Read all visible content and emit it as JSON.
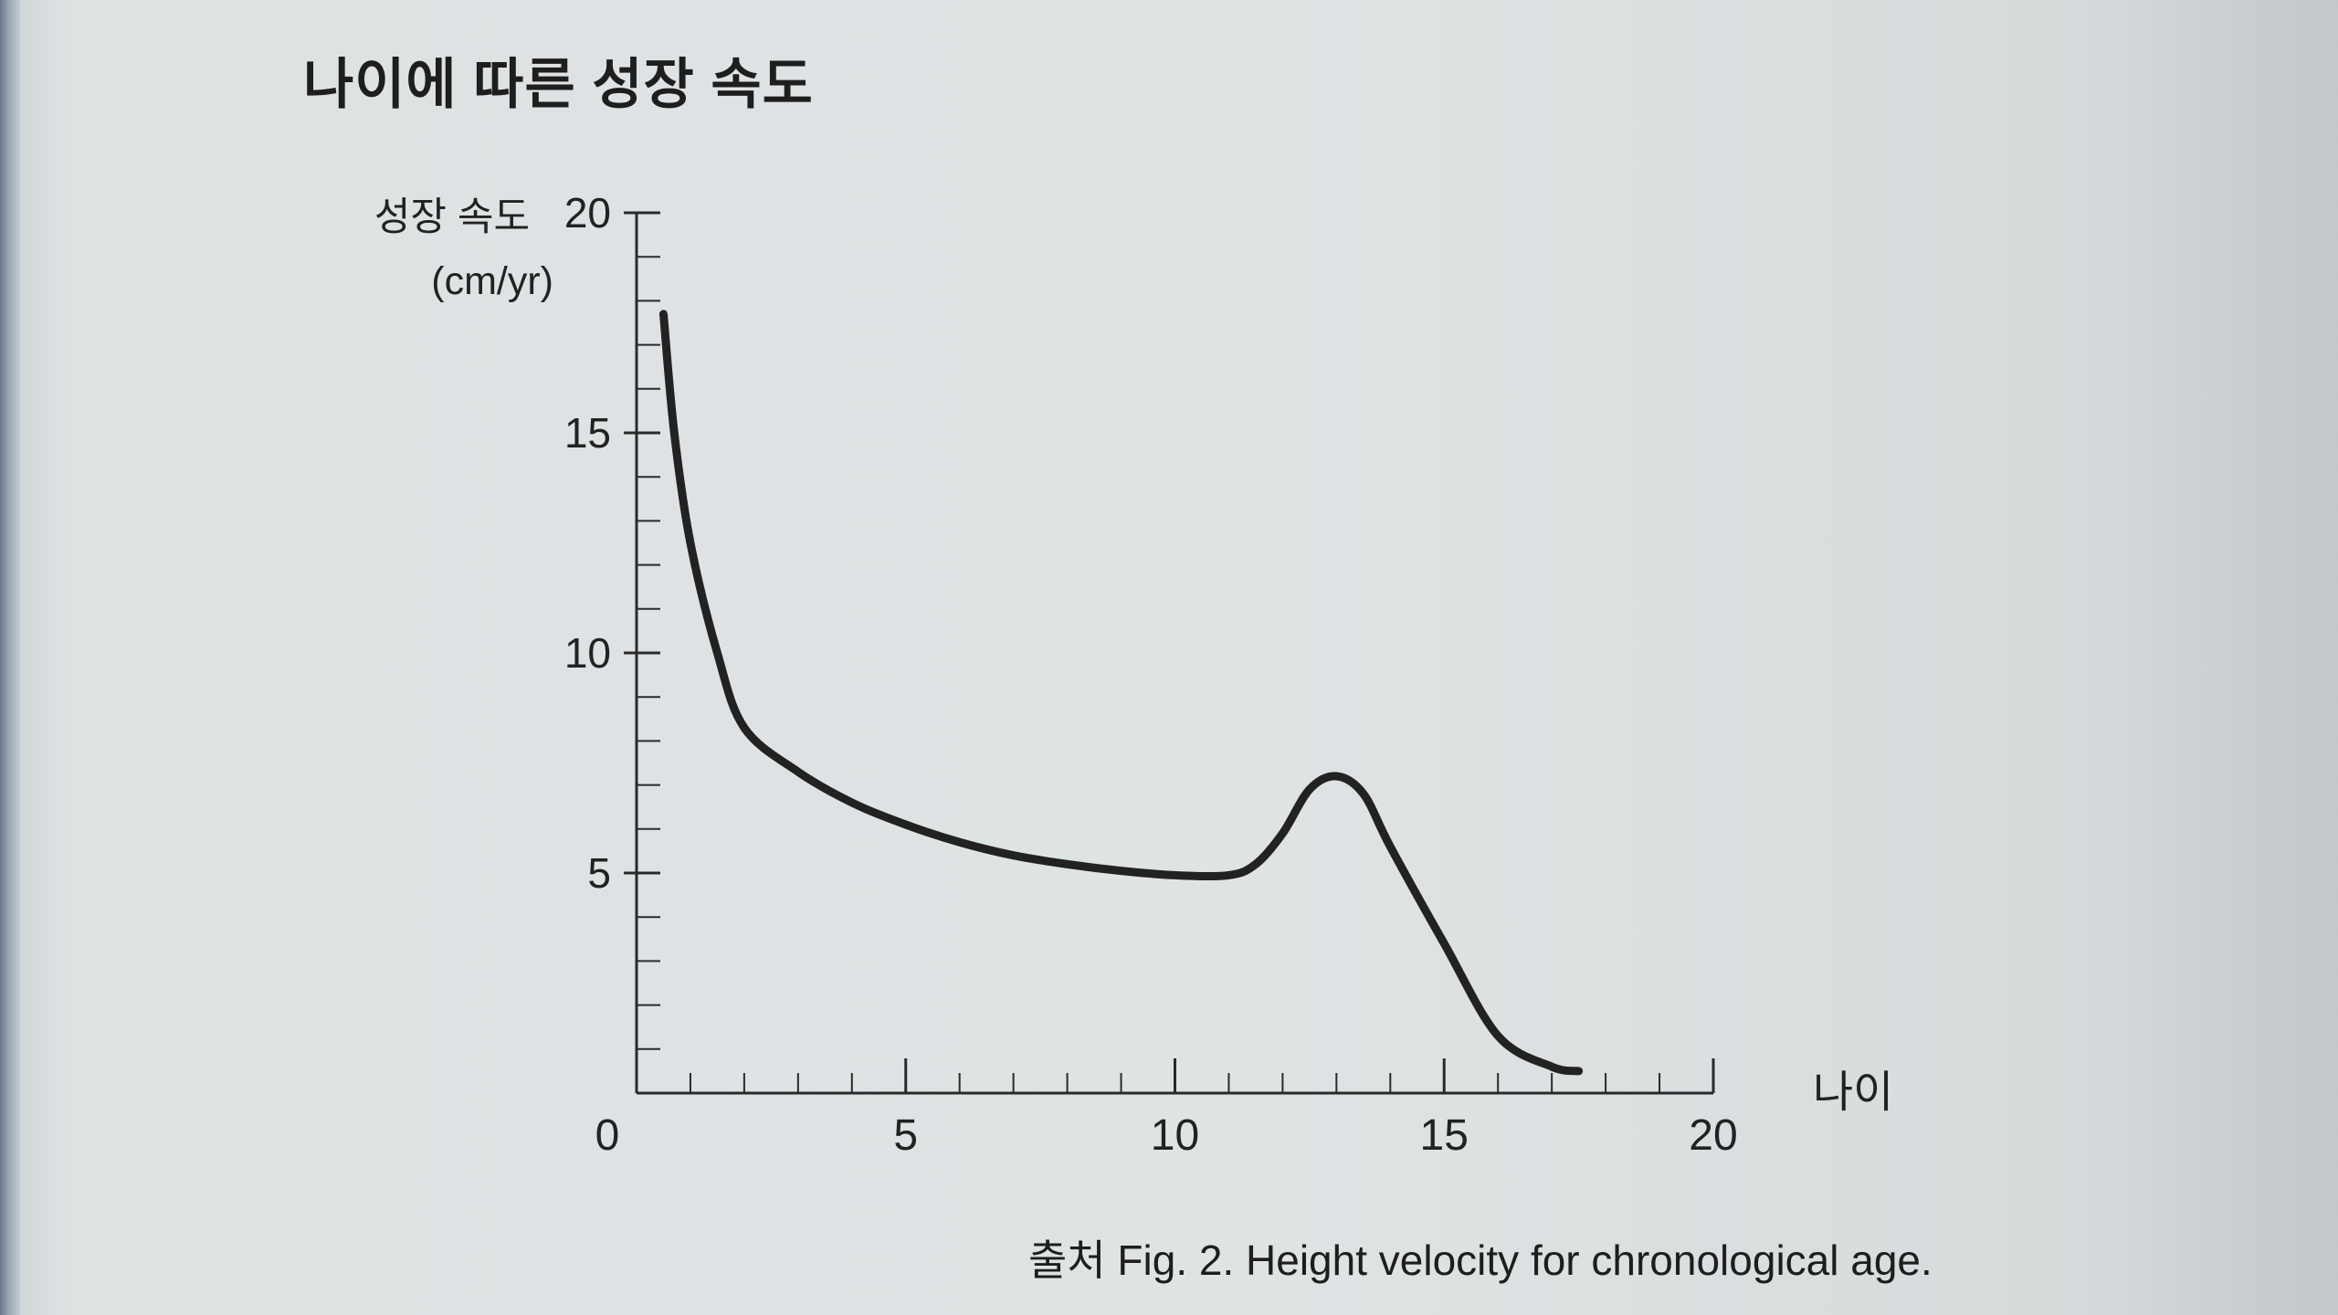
{
  "page": {
    "title": "나이에 따른 성장 속도",
    "caption": "출처 Fig. 2. Height velocity for chronological age."
  },
  "chart_data": {
    "type": "line",
    "title": "나이에 따른 성장 속도",
    "xlabel": "나이",
    "ylabel": "성장 속도",
    "ylabel_unit": "(cm/yr)",
    "xlim": [
      0,
      20
    ],
    "ylim": [
      0,
      20
    ],
    "xticks": [
      0,
      5,
      10,
      15,
      20
    ],
    "yticks": [
      5,
      10,
      15,
      20
    ],
    "x_minor_step": 1,
    "y_minor_step": 1,
    "grid": false,
    "legend": "none",
    "line_color": "#222222",
    "series": [
      {
        "x": [
          0.5,
          0.7,
          1.0,
          1.5,
          2.0,
          3.0,
          4.0,
          5.0,
          6.0,
          7.0,
          8.0,
          9.0,
          10.0,
          11.0,
          11.5,
          12.0,
          12.5,
          13.0,
          13.5,
          14.0,
          15.0,
          16.0,
          17.0,
          17.5
        ],
        "y": [
          17.7,
          15.0,
          12.5,
          10.0,
          8.3,
          7.3,
          6.6,
          6.1,
          5.7,
          5.4,
          5.2,
          5.05,
          4.95,
          4.95,
          5.2,
          5.9,
          6.9,
          7.2,
          6.8,
          5.6,
          3.4,
          1.3,
          0.6,
          0.5
        ]
      }
    ]
  }
}
